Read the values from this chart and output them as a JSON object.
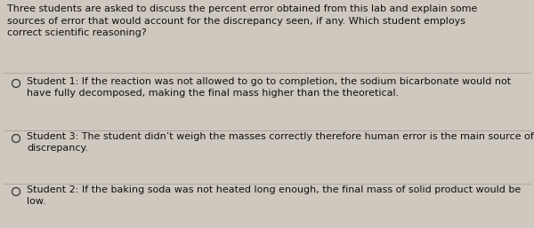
{
  "background_color": "#cec8be",
  "text_color": "#111111",
  "title_text": "Three students are asked to discuss the percent error obtained from this lab and explain some\nsources of error that would account for the discrepancy seen, if any. Which student employs\ncorrect scientific reasoning?",
  "option1_line1": "Student 1: If the reaction was not allowed to go to completion, the sodium bicarbonate would not",
  "option1_line2": "have fully decomposed, making the final mass higher than the theoretical.",
  "option2_line1": "Student 3: The student didn’t weigh the masses correctly therefore human error is the main source of",
  "option2_line2": "discrepancy.",
  "option3_line1": "Student 2: If the baking soda was not heated long enough, the final mass of solid product would be",
  "option3_line2": "low.",
  "font_size": 8.0,
  "fig_width": 6.0,
  "fig_height": 2.57,
  "divider_color": "#a09890",
  "circle_color": "#333333"
}
